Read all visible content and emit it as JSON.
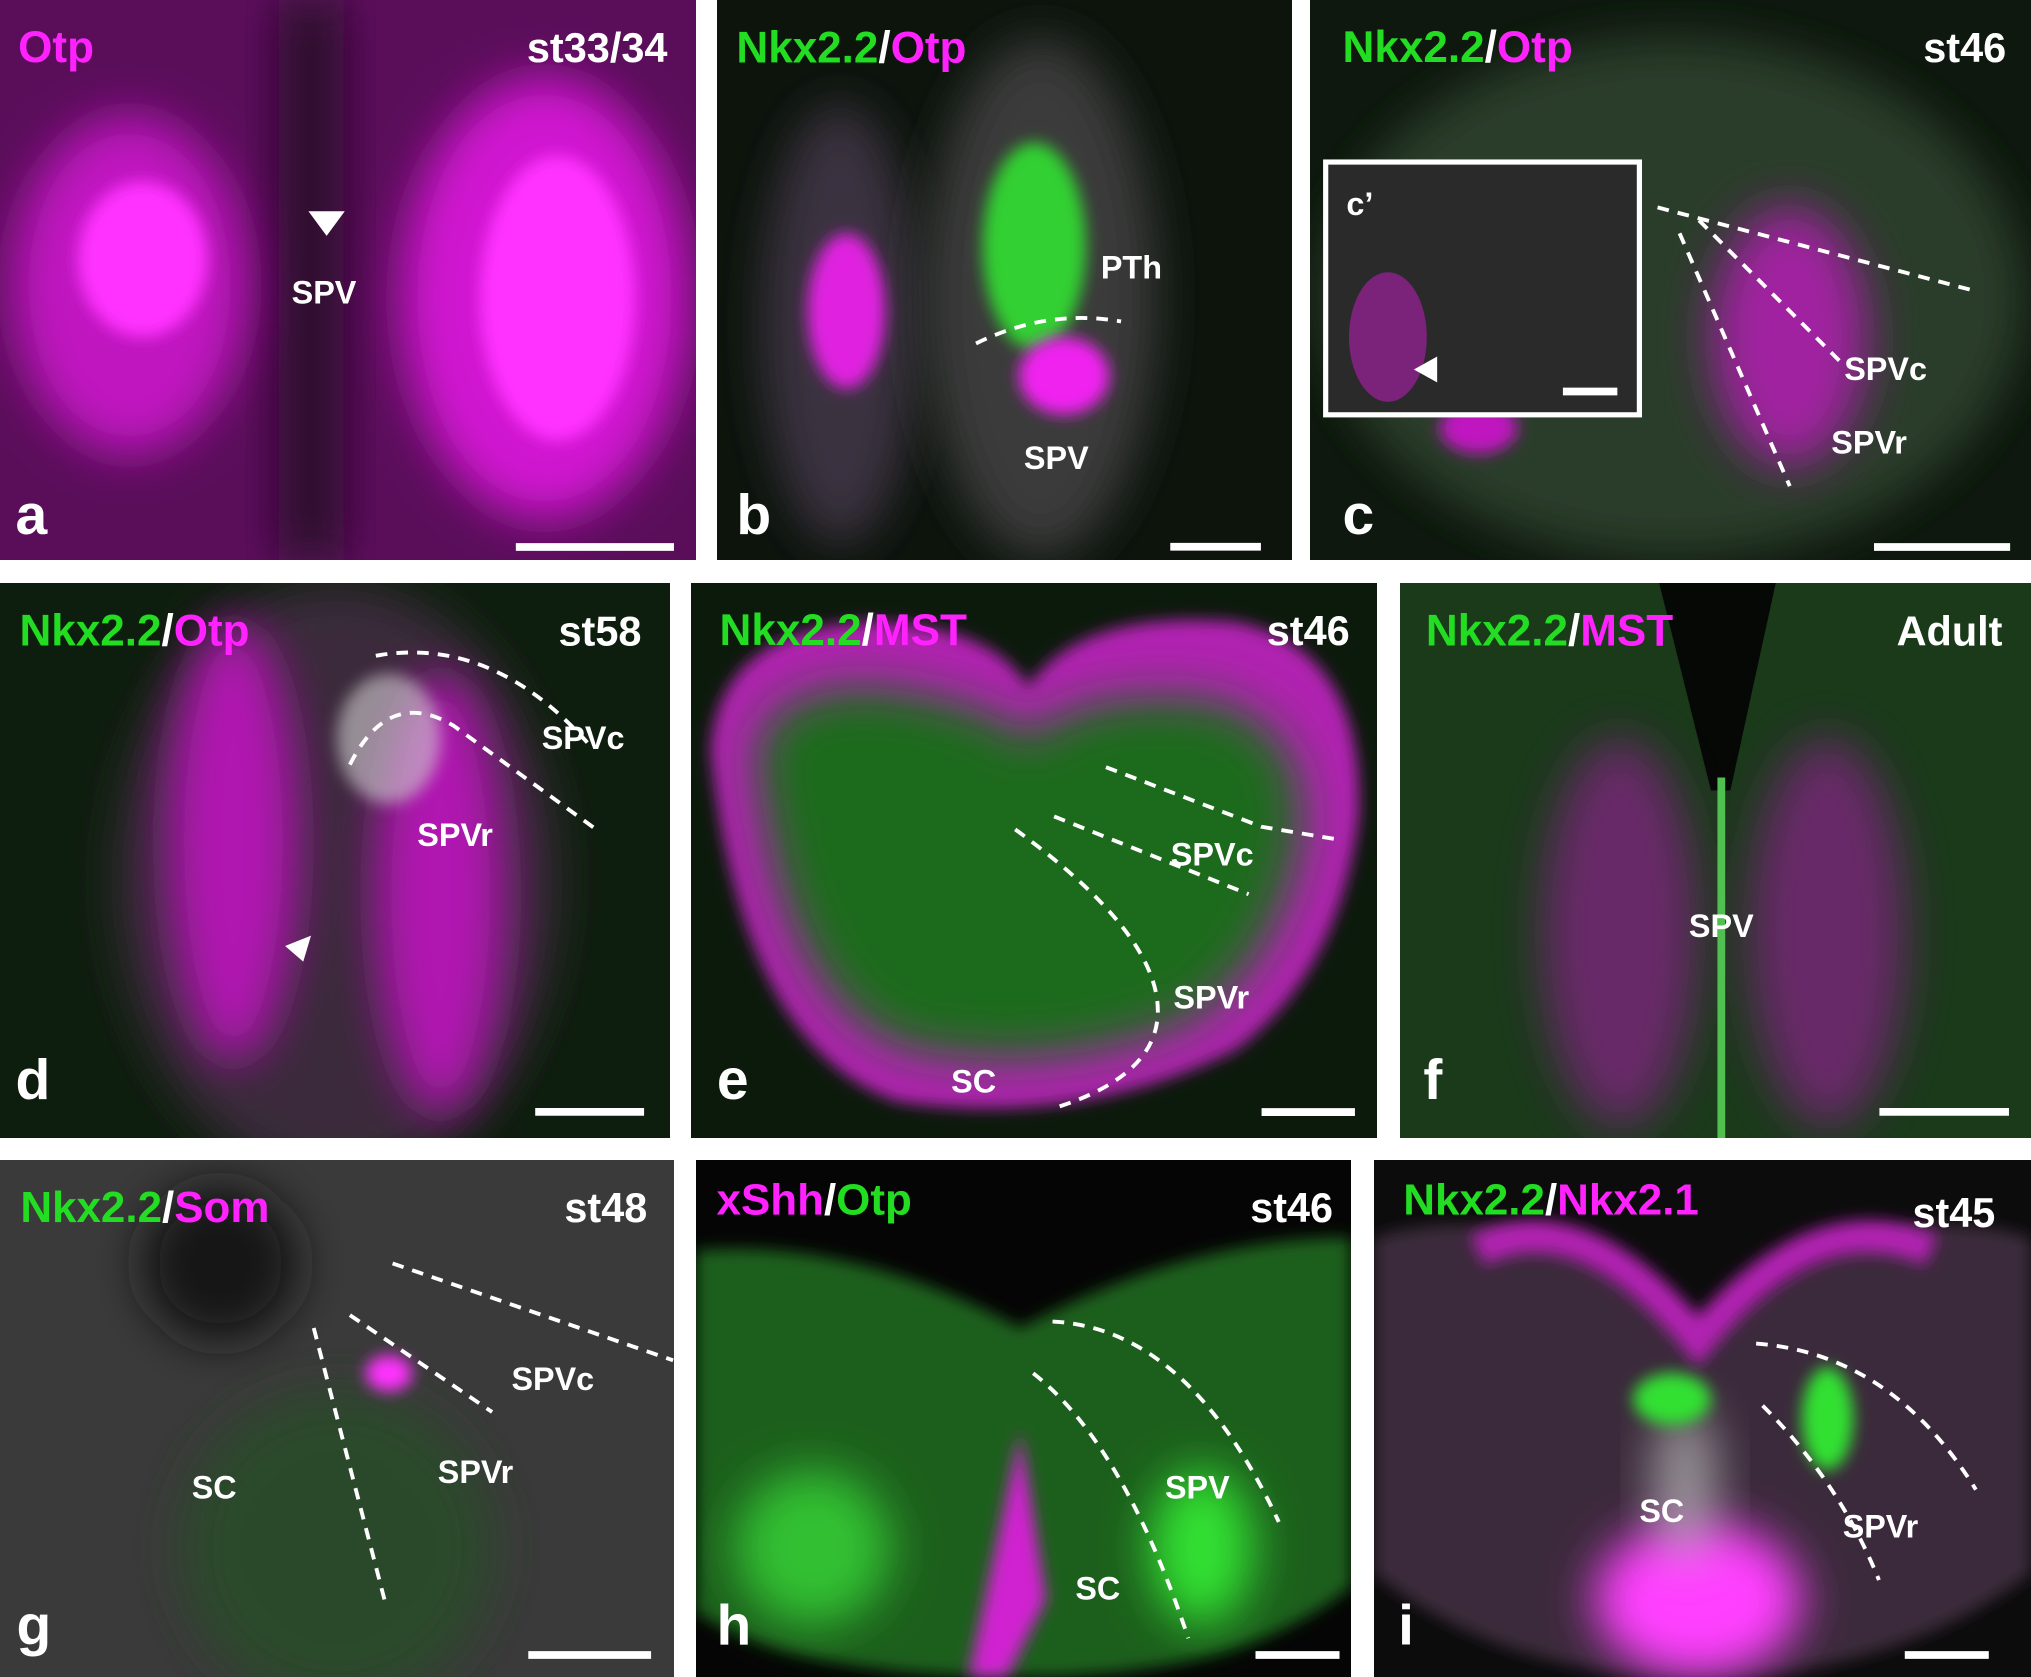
{
  "colors": {
    "green": "#22dd22",
    "magenta": "#ff22ff",
    "white": "#ffffff"
  },
  "panels": {
    "a": {
      "letter": "a",
      "stain": [
        {
          "text": "Otp",
          "color": "magenta"
        }
      ],
      "stage": "st33/34",
      "regions": [
        "SPV"
      ],
      "markers": [
        "arrowhead-icon"
      ]
    },
    "b": {
      "letter": "b",
      "stain": [
        {
          "text": "Nkx2.2",
          "color": "green"
        },
        {
          "text": "/",
          "color": "white"
        },
        {
          "text": "Otp",
          "color": "magenta"
        }
      ],
      "regions": [
        "PTh",
        "SPV"
      ]
    },
    "c": {
      "letter": "c",
      "stain": [
        {
          "text": "Nkx2.2",
          "color": "green"
        },
        {
          "text": "/",
          "color": "white"
        },
        {
          "text": "Otp",
          "color": "magenta"
        }
      ],
      "stage": "st46",
      "inset_label": "c’",
      "regions": [
        "SPVc",
        "SPVr"
      ],
      "markers": [
        "arrowhead-icon"
      ]
    },
    "d": {
      "letter": "d",
      "stain": [
        {
          "text": "Nkx2.2",
          "color": "green"
        },
        {
          "text": "/",
          "color": "white"
        },
        {
          "text": "Otp",
          "color": "magenta"
        }
      ],
      "stage": "st58",
      "regions": [
        "SPVc",
        "SPVr"
      ],
      "markers": [
        "arrowhead-icon"
      ]
    },
    "e": {
      "letter": "e",
      "stain": [
        {
          "text": "Nkx2.2",
          "color": "green"
        },
        {
          "text": "/",
          "color": "white"
        },
        {
          "text": "MST",
          "color": "magenta"
        }
      ],
      "stage": "st46",
      "regions": [
        "SPVc",
        "SPVr",
        "SC"
      ]
    },
    "f": {
      "letter": "f",
      "stain": [
        {
          "text": "Nkx2.2",
          "color": "green"
        },
        {
          "text": "/",
          "color": "white"
        },
        {
          "text": "MST",
          "color": "magenta"
        }
      ],
      "stage": "Adult",
      "regions": [
        "SPV"
      ]
    },
    "g": {
      "letter": "g",
      "stain": [
        {
          "text": "Nkx2.2",
          "color": "green"
        },
        {
          "text": "/",
          "color": "white"
        },
        {
          "text": "Som",
          "color": "magenta"
        }
      ],
      "stage": "st48",
      "regions": [
        "SPVc",
        "SPVr",
        "SC"
      ]
    },
    "h": {
      "letter": "h",
      "stain": [
        {
          "text": "xShh",
          "color": "magenta"
        },
        {
          "text": "/",
          "color": "white"
        },
        {
          "text": "Otp",
          "color": "green"
        }
      ],
      "stage": "st46",
      "regions": [
        "SPV",
        "SC"
      ]
    },
    "i": {
      "letter": "i",
      "stain": [
        {
          "text": "Nkx2.2",
          "color": "green"
        },
        {
          "text": "/",
          "color": "white"
        },
        {
          "text": "Nkx2.1",
          "color": "magenta"
        }
      ],
      "stage": "st45",
      "regions": [
        "SC",
        "SPVr"
      ]
    }
  }
}
